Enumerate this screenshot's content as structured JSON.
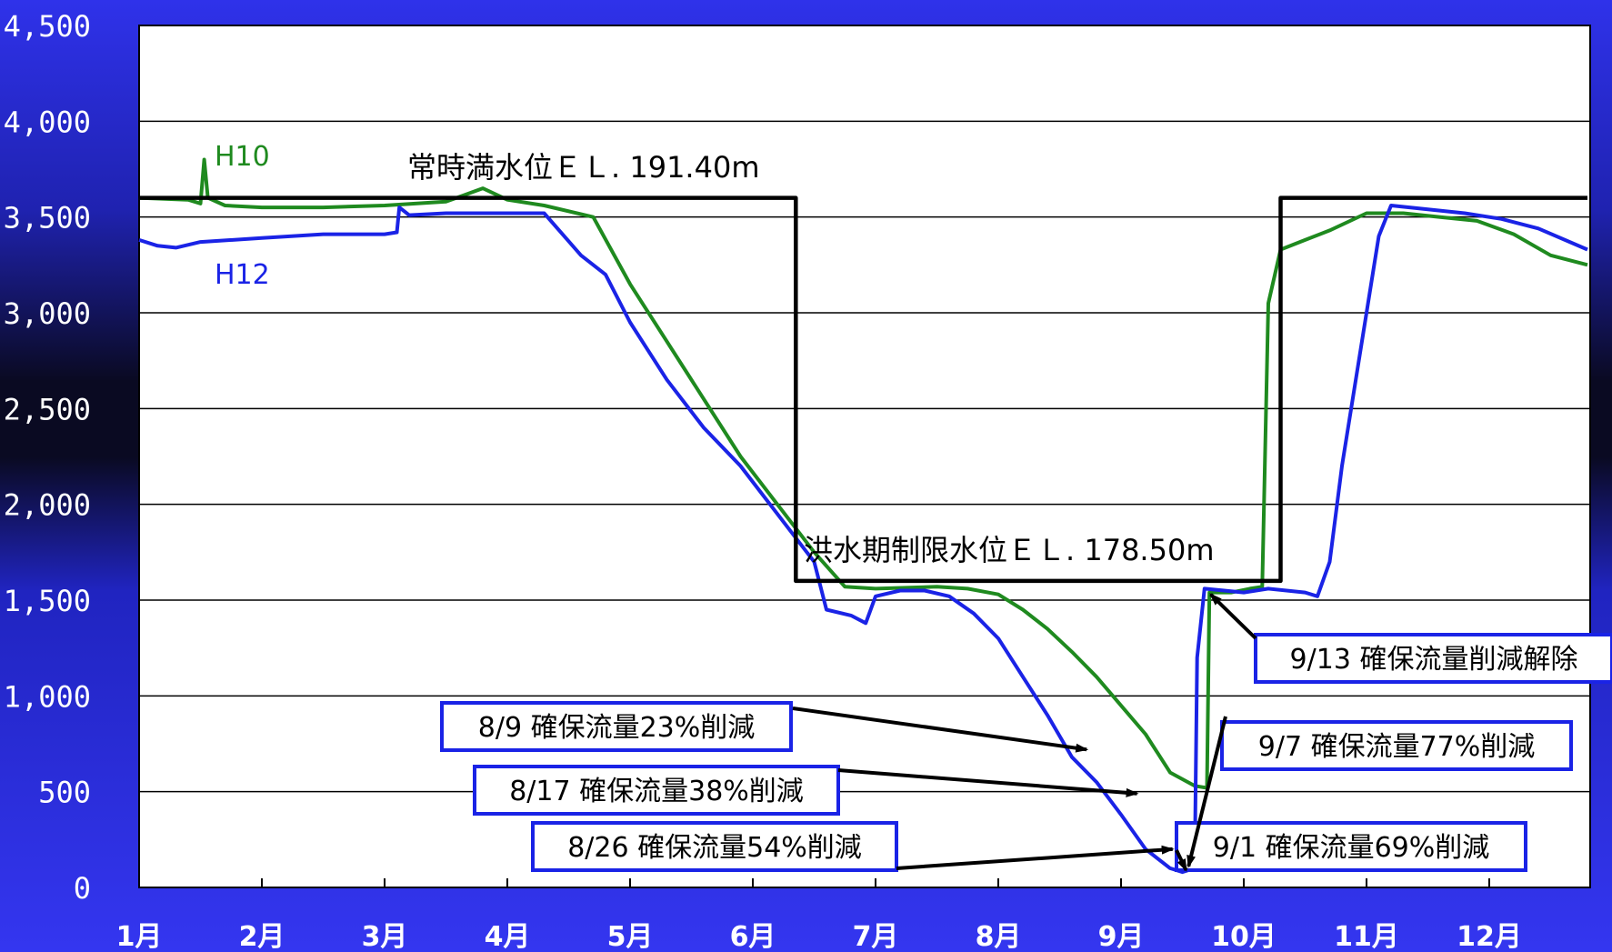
{
  "chart_data": {
    "type": "line",
    "title": "",
    "xlabel": "",
    "ylabel": "",
    "ylim": [
      0,
      4500
    ],
    "y_ticks": [
      "4,500",
      "4,000",
      "3,500",
      "3,000",
      "2,500",
      "2,000",
      "1,500",
      "1,000",
      "500",
      "0"
    ],
    "x_ticks": [
      "1月",
      "2月",
      "3月",
      "4月",
      "5月",
      "6月",
      "7月",
      "8月",
      "9月",
      "10月",
      "11月",
      "12月"
    ],
    "grid": true,
    "series": [
      {
        "name": "H10",
        "color": "#1f8a1f",
        "points": [
          [
            0,
            3600
          ],
          [
            0.4,
            3590
          ],
          [
            0.5,
            3570
          ],
          [
            0.53,
            3800
          ],
          [
            0.56,
            3600
          ],
          [
            0.7,
            3560
          ],
          [
            1.0,
            3550
          ],
          [
            1.5,
            3550
          ],
          [
            2.0,
            3560
          ],
          [
            2.5,
            3580
          ],
          [
            2.8,
            3650
          ],
          [
            3.0,
            3590
          ],
          [
            3.3,
            3560
          ],
          [
            3.7,
            3500
          ],
          [
            4.0,
            3150
          ],
          [
            4.3,
            2850
          ],
          [
            4.6,
            2550
          ],
          [
            4.9,
            2250
          ],
          [
            5.2,
            2000
          ],
          [
            5.5,
            1750
          ],
          [
            5.75,
            1570
          ],
          [
            6.0,
            1560
          ],
          [
            6.5,
            1570
          ],
          [
            6.75,
            1560
          ],
          [
            7.0,
            1530
          ],
          [
            7.2,
            1450
          ],
          [
            7.4,
            1350
          ],
          [
            7.6,
            1230
          ],
          [
            7.8,
            1100
          ],
          [
            8.0,
            950
          ],
          [
            8.2,
            800
          ],
          [
            8.4,
            600
          ],
          [
            8.6,
            530
          ],
          [
            8.7,
            520
          ],
          [
            8.72,
            1540
          ],
          [
            8.9,
            1540
          ],
          [
            9.05,
            1560
          ],
          [
            9.15,
            1570
          ],
          [
            9.2,
            3050
          ],
          [
            9.3,
            3330
          ],
          [
            9.5,
            3380
          ],
          [
            9.7,
            3430
          ],
          [
            10.0,
            3520
          ],
          [
            10.3,
            3520
          ],
          [
            10.6,
            3500
          ],
          [
            10.9,
            3480
          ],
          [
            11.2,
            3410
          ],
          [
            11.5,
            3300
          ],
          [
            11.8,
            3250
          ]
        ]
      },
      {
        "name": "H12",
        "color": "#1a23e6",
        "points": [
          [
            0,
            3380
          ],
          [
            0.15,
            3350
          ],
          [
            0.3,
            3340
          ],
          [
            0.5,
            3370
          ],
          [
            1.0,
            3390
          ],
          [
            1.5,
            3410
          ],
          [
            2.0,
            3410
          ],
          [
            2.1,
            3420
          ],
          [
            2.12,
            3550
          ],
          [
            2.2,
            3510
          ],
          [
            2.5,
            3520
          ],
          [
            3.0,
            3520
          ],
          [
            3.3,
            3520
          ],
          [
            3.6,
            3300
          ],
          [
            3.8,
            3200
          ],
          [
            4.0,
            2950
          ],
          [
            4.3,
            2650
          ],
          [
            4.6,
            2400
          ],
          [
            4.9,
            2200
          ],
          [
            5.2,
            1950
          ],
          [
            5.5,
            1700
          ],
          [
            5.6,
            1450
          ],
          [
            5.8,
            1420
          ],
          [
            5.92,
            1380
          ],
          [
            6.0,
            1520
          ],
          [
            6.2,
            1550
          ],
          [
            6.4,
            1550
          ],
          [
            6.6,
            1520
          ],
          [
            6.8,
            1430
          ],
          [
            7.0,
            1300
          ],
          [
            7.2,
            1100
          ],
          [
            7.4,
            900
          ],
          [
            7.6,
            680
          ],
          [
            7.8,
            550
          ],
          [
            8.0,
            380
          ],
          [
            8.2,
            200
          ],
          [
            8.4,
            100
          ],
          [
            8.5,
            80
          ],
          [
            8.6,
            100
          ],
          [
            8.62,
            1200
          ],
          [
            8.68,
            1560
          ],
          [
            9.0,
            1540
          ],
          [
            9.2,
            1560
          ],
          [
            9.5,
            1540
          ],
          [
            9.6,
            1520
          ],
          [
            9.7,
            1700
          ],
          [
            9.8,
            2200
          ],
          [
            10.0,
            3000
          ],
          [
            10.1,
            3400
          ],
          [
            10.2,
            3560
          ],
          [
            10.5,
            3540
          ],
          [
            10.8,
            3520
          ],
          [
            11.1,
            3490
          ],
          [
            11.4,
            3440
          ],
          [
            11.8,
            3330
          ]
        ]
      },
      {
        "name": "常時満水位 / 洪水期制限水位",
        "color": "#000000",
        "points": [
          [
            0,
            3600
          ],
          [
            5.35,
            3600
          ],
          [
            5.35,
            1600
          ],
          [
            9.3,
            1600
          ],
          [
            9.3,
            3600
          ],
          [
            11.8,
            3600
          ]
        ]
      }
    ],
    "annotations": [
      {
        "text": "H10",
        "color": "#1f8a1f"
      },
      {
        "text": "H12",
        "color": "#1a23e6"
      },
      {
        "text": "常時満水位ＥＬ. 191.40m"
      },
      {
        "text": "洪水期制限水位ＥＬ. 178.50m"
      },
      {
        "text": "8/9 確保流量23%削減",
        "target": [
          7.72,
          720
        ]
      },
      {
        "text": "8/17 確保流量38%削減",
        "target": [
          8.13,
          490
        ]
      },
      {
        "text": "8/26 確保流量54%削減",
        "target": [
          8.42,
          200
        ]
      },
      {
        "text": "9/1 確保流量69%削減",
        "target": [
          8.53,
          90
        ]
      },
      {
        "text": "9/7 確保流量77%削減",
        "target": [
          8.55,
          110
        ]
      },
      {
        "text": "9/13 確保流量削減解除",
        "target": [
          8.73,
          1530
        ]
      }
    ]
  }
}
